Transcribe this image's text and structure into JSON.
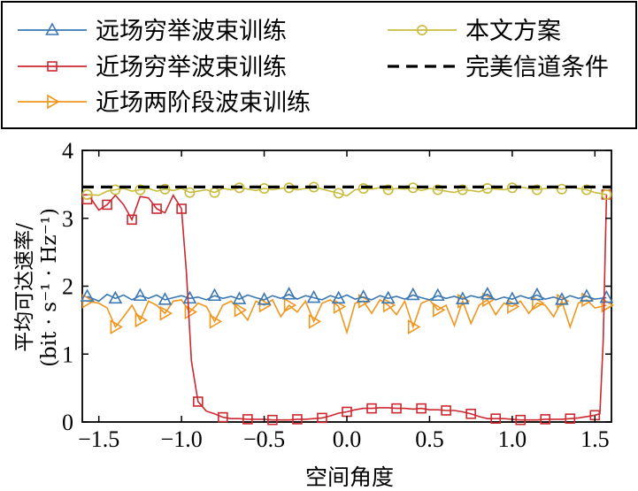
{
  "chart_data": {
    "type": "line",
    "xlabel": "空间角度",
    "ylabel_line1": "平均可达速率/",
    "ylabel_line2": "(bit · s⁻¹ · Hz⁻¹)",
    "xlim": [
      -1.6,
      1.6
    ],
    "ylim": [
      0,
      4
    ],
    "x_ticks": [
      -1.5,
      -1.0,
      -0.5,
      0.0,
      0.5,
      1.0,
      1.5
    ],
    "x_tick_labels": [
      "−1.5",
      "−1.0",
      "−0.5",
      "0.0",
      "0.5",
      "1.0",
      "1.5"
    ],
    "y_ticks": [
      0,
      1,
      2,
      3,
      4
    ],
    "y_tick_labels": [
      "0",
      "1",
      "2",
      "3",
      "4"
    ],
    "grid": false,
    "legend_position": "top (outside, boxed)",
    "series": [
      {
        "name": "远场穷举波束训练",
        "color": "#3b78b4",
        "marker": "triangle-up",
        "x": [
          -1.57,
          -1.5,
          -1.45,
          -1.4,
          -1.35,
          -1.3,
          -1.25,
          -1.2,
          -1.15,
          -1.1,
          -1.05,
          -1.0,
          -0.95,
          -0.9,
          -0.85,
          -0.8,
          -0.75,
          -0.7,
          -0.65,
          -0.6,
          -0.55,
          -0.5,
          -0.45,
          -0.4,
          -0.35,
          -0.3,
          -0.25,
          -0.2,
          -0.15,
          -0.1,
          -0.05,
          0.0,
          0.05,
          0.1,
          0.15,
          0.2,
          0.25,
          0.3,
          0.35,
          0.4,
          0.45,
          0.5,
          0.55,
          0.6,
          0.65,
          0.7,
          0.75,
          0.8,
          0.85,
          0.9,
          0.95,
          1.0,
          1.05,
          1.1,
          1.15,
          1.2,
          1.25,
          1.3,
          1.35,
          1.4,
          1.45,
          1.5,
          1.57
        ],
        "y": [
          1.85,
          1.78,
          1.88,
          1.82,
          1.87,
          1.8,
          1.86,
          1.82,
          1.87,
          1.8,
          1.83,
          1.86,
          1.82,
          1.84,
          1.8,
          1.86,
          1.82,
          1.85,
          1.81,
          1.87,
          1.83,
          1.8,
          1.86,
          1.82,
          1.88,
          1.81,
          1.86,
          1.83,
          1.8,
          1.86,
          1.82,
          1.87,
          1.81,
          1.84,
          1.8,
          1.86,
          1.82,
          1.85,
          1.81,
          1.87,
          1.83,
          1.8,
          1.86,
          1.82,
          1.85,
          1.81,
          1.86,
          1.83,
          1.88,
          1.8,
          1.84,
          1.81,
          1.86,
          1.82,
          1.87,
          1.81,
          1.84,
          1.8,
          1.86,
          1.82,
          1.85,
          1.81,
          1.83
        ]
      },
      {
        "name": "近场穷举波束训练",
        "color": "#cc2830",
        "marker": "square",
        "x": [
          -1.57,
          -1.55,
          -1.5,
          -1.45,
          -1.4,
          -1.35,
          -1.3,
          -1.25,
          -1.2,
          -1.15,
          -1.1,
          -1.05,
          -1.0,
          -0.97,
          -0.94,
          -0.9,
          -0.85,
          -0.8,
          -0.75,
          -0.7,
          -0.65,
          -0.6,
          -0.55,
          -0.5,
          -0.45,
          -0.4,
          -0.35,
          -0.3,
          -0.25,
          -0.2,
          -0.15,
          -0.1,
          -0.05,
          0.0,
          0.05,
          0.1,
          0.15,
          0.2,
          0.25,
          0.3,
          0.35,
          0.4,
          0.45,
          0.5,
          0.55,
          0.6,
          0.65,
          0.7,
          0.75,
          0.8,
          0.85,
          0.9,
          0.95,
          1.0,
          1.05,
          1.1,
          1.15,
          1.2,
          1.25,
          1.3,
          1.35,
          1.4,
          1.45,
          1.5,
          1.53,
          1.55,
          1.57
        ],
        "y": [
          3.28,
          3.3,
          3.12,
          3.2,
          3.34,
          3.2,
          2.98,
          3.32,
          3.3,
          3.14,
          3.08,
          3.34,
          3.14,
          2.2,
          0.9,
          0.3,
          0.16,
          0.12,
          0.07,
          0.05,
          0.05,
          0.04,
          0.04,
          0.04,
          0.03,
          0.03,
          0.03,
          0.04,
          0.04,
          0.05,
          0.06,
          0.09,
          0.13,
          0.15,
          0.18,
          0.2,
          0.2,
          0.21,
          0.21,
          0.2,
          0.2,
          0.19,
          0.2,
          0.18,
          0.18,
          0.17,
          0.17,
          0.15,
          0.12,
          0.08,
          0.05,
          0.05,
          0.05,
          0.04,
          0.03,
          0.03,
          0.03,
          0.04,
          0.04,
          0.04,
          0.05,
          0.06,
          0.08,
          0.1,
          0.12,
          1.2,
          3.35
        ]
      },
      {
        "name": "近场两阶段波束训练",
        "color": "#f0961e",
        "marker": "triangle-right",
        "x": [
          -1.57,
          -1.5,
          -1.45,
          -1.4,
          -1.35,
          -1.3,
          -1.25,
          -1.2,
          -1.15,
          -1.1,
          -1.05,
          -1.0,
          -0.95,
          -0.9,
          -0.85,
          -0.8,
          -0.75,
          -0.7,
          -0.65,
          -0.6,
          -0.55,
          -0.5,
          -0.45,
          -0.4,
          -0.35,
          -0.3,
          -0.25,
          -0.2,
          -0.15,
          -0.1,
          -0.05,
          0.0,
          0.05,
          0.1,
          0.15,
          0.2,
          0.25,
          0.3,
          0.35,
          0.4,
          0.45,
          0.5,
          0.55,
          0.6,
          0.65,
          0.7,
          0.75,
          0.8,
          0.85,
          0.9,
          0.95,
          1.0,
          1.05,
          1.1,
          1.15,
          1.2,
          1.25,
          1.3,
          1.35,
          1.4,
          1.45,
          1.5,
          1.57
        ],
        "y": [
          1.78,
          1.75,
          1.68,
          1.4,
          1.55,
          1.72,
          1.5,
          1.78,
          1.72,
          1.6,
          1.78,
          1.8,
          1.62,
          1.75,
          1.7,
          1.48,
          1.72,
          1.78,
          1.65,
          1.5,
          1.78,
          1.72,
          1.8,
          1.55,
          1.72,
          1.62,
          1.78,
          1.48,
          1.75,
          1.8,
          1.7,
          1.32,
          1.75,
          1.78,
          1.6,
          1.8,
          1.72,
          1.58,
          1.78,
          1.4,
          1.75,
          1.8,
          1.65,
          1.72,
          1.42,
          1.78,
          1.45,
          1.72,
          1.8,
          1.58,
          1.75,
          1.7,
          1.78,
          1.6,
          1.75,
          1.72,
          1.55,
          1.78,
          1.4,
          1.75,
          1.8,
          1.68,
          1.72
        ]
      },
      {
        "name": "本文方案",
        "color": "#c8bc3c",
        "marker": "circle",
        "x": [
          -1.57,
          -1.5,
          -1.45,
          -1.4,
          -1.35,
          -1.3,
          -1.25,
          -1.2,
          -1.15,
          -1.1,
          -1.05,
          -1.0,
          -0.95,
          -0.9,
          -0.85,
          -0.8,
          -0.75,
          -0.7,
          -0.65,
          -0.6,
          -0.55,
          -0.5,
          -0.45,
          -0.4,
          -0.35,
          -0.3,
          -0.25,
          -0.2,
          -0.15,
          -0.1,
          -0.05,
          0.0,
          0.05,
          0.1,
          0.15,
          0.2,
          0.25,
          0.3,
          0.35,
          0.4,
          0.45,
          0.5,
          0.55,
          0.6,
          0.65,
          0.7,
          0.75,
          0.8,
          0.85,
          0.9,
          0.95,
          1.0,
          1.05,
          1.1,
          1.15,
          1.2,
          1.25,
          1.3,
          1.35,
          1.4,
          1.45,
          1.5,
          1.57
        ],
        "y": [
          3.35,
          3.34,
          3.4,
          3.42,
          3.44,
          3.4,
          3.42,
          3.44,
          3.4,
          3.43,
          3.41,
          3.44,
          3.38,
          3.4,
          3.42,
          3.38,
          3.44,
          3.42,
          3.45,
          3.43,
          3.41,
          3.44,
          3.42,
          3.44,
          3.45,
          3.42,
          3.44,
          3.46,
          3.43,
          3.4,
          3.37,
          3.33,
          3.42,
          3.44,
          3.43,
          3.45,
          3.42,
          3.44,
          3.43,
          3.45,
          3.41,
          3.44,
          3.42,
          3.4,
          3.38,
          3.42,
          3.41,
          3.39,
          3.44,
          3.43,
          3.42,
          3.45,
          3.46,
          3.44,
          3.42,
          3.44,
          3.45,
          3.43,
          3.46,
          3.44,
          3.42,
          3.38,
          3.35
        ]
      },
      {
        "name": "完美信道条件",
        "color": "#000000",
        "marker": "none",
        "dash": true,
        "x": [
          -1.6,
          1.6
        ],
        "y": [
          3.46,
          3.46
        ]
      }
    ],
    "marker_every": 3
  }
}
